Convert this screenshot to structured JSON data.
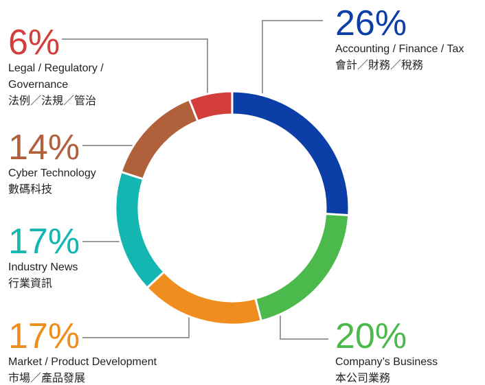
{
  "chart_data": {
    "type": "pie",
    "donut": true,
    "categories": [
      "Accounting / Finance / Tax",
      "Company’s Business",
      "Market / Product Development",
      "Industry News",
      "Cyber Technology",
      "Legal / Regulatory / Governance"
    ],
    "categories_zh": [
      "會計／財務／稅務",
      "本公司業務",
      "市場／產品發展",
      "行業資訊",
      "數碼科技",
      "法例／法規／管治"
    ],
    "values": [
      26,
      20,
      17,
      17,
      14,
      6
    ],
    "value_labels": [
      "26%",
      "20%",
      "17%",
      "17%",
      "14%",
      "6%"
    ],
    "colors": [
      "#0b3ea7",
      "#4bb94c",
      "#ef8d1f",
      "#13b6b0",
      "#b0613b",
      "#d33d3a"
    ]
  }
}
